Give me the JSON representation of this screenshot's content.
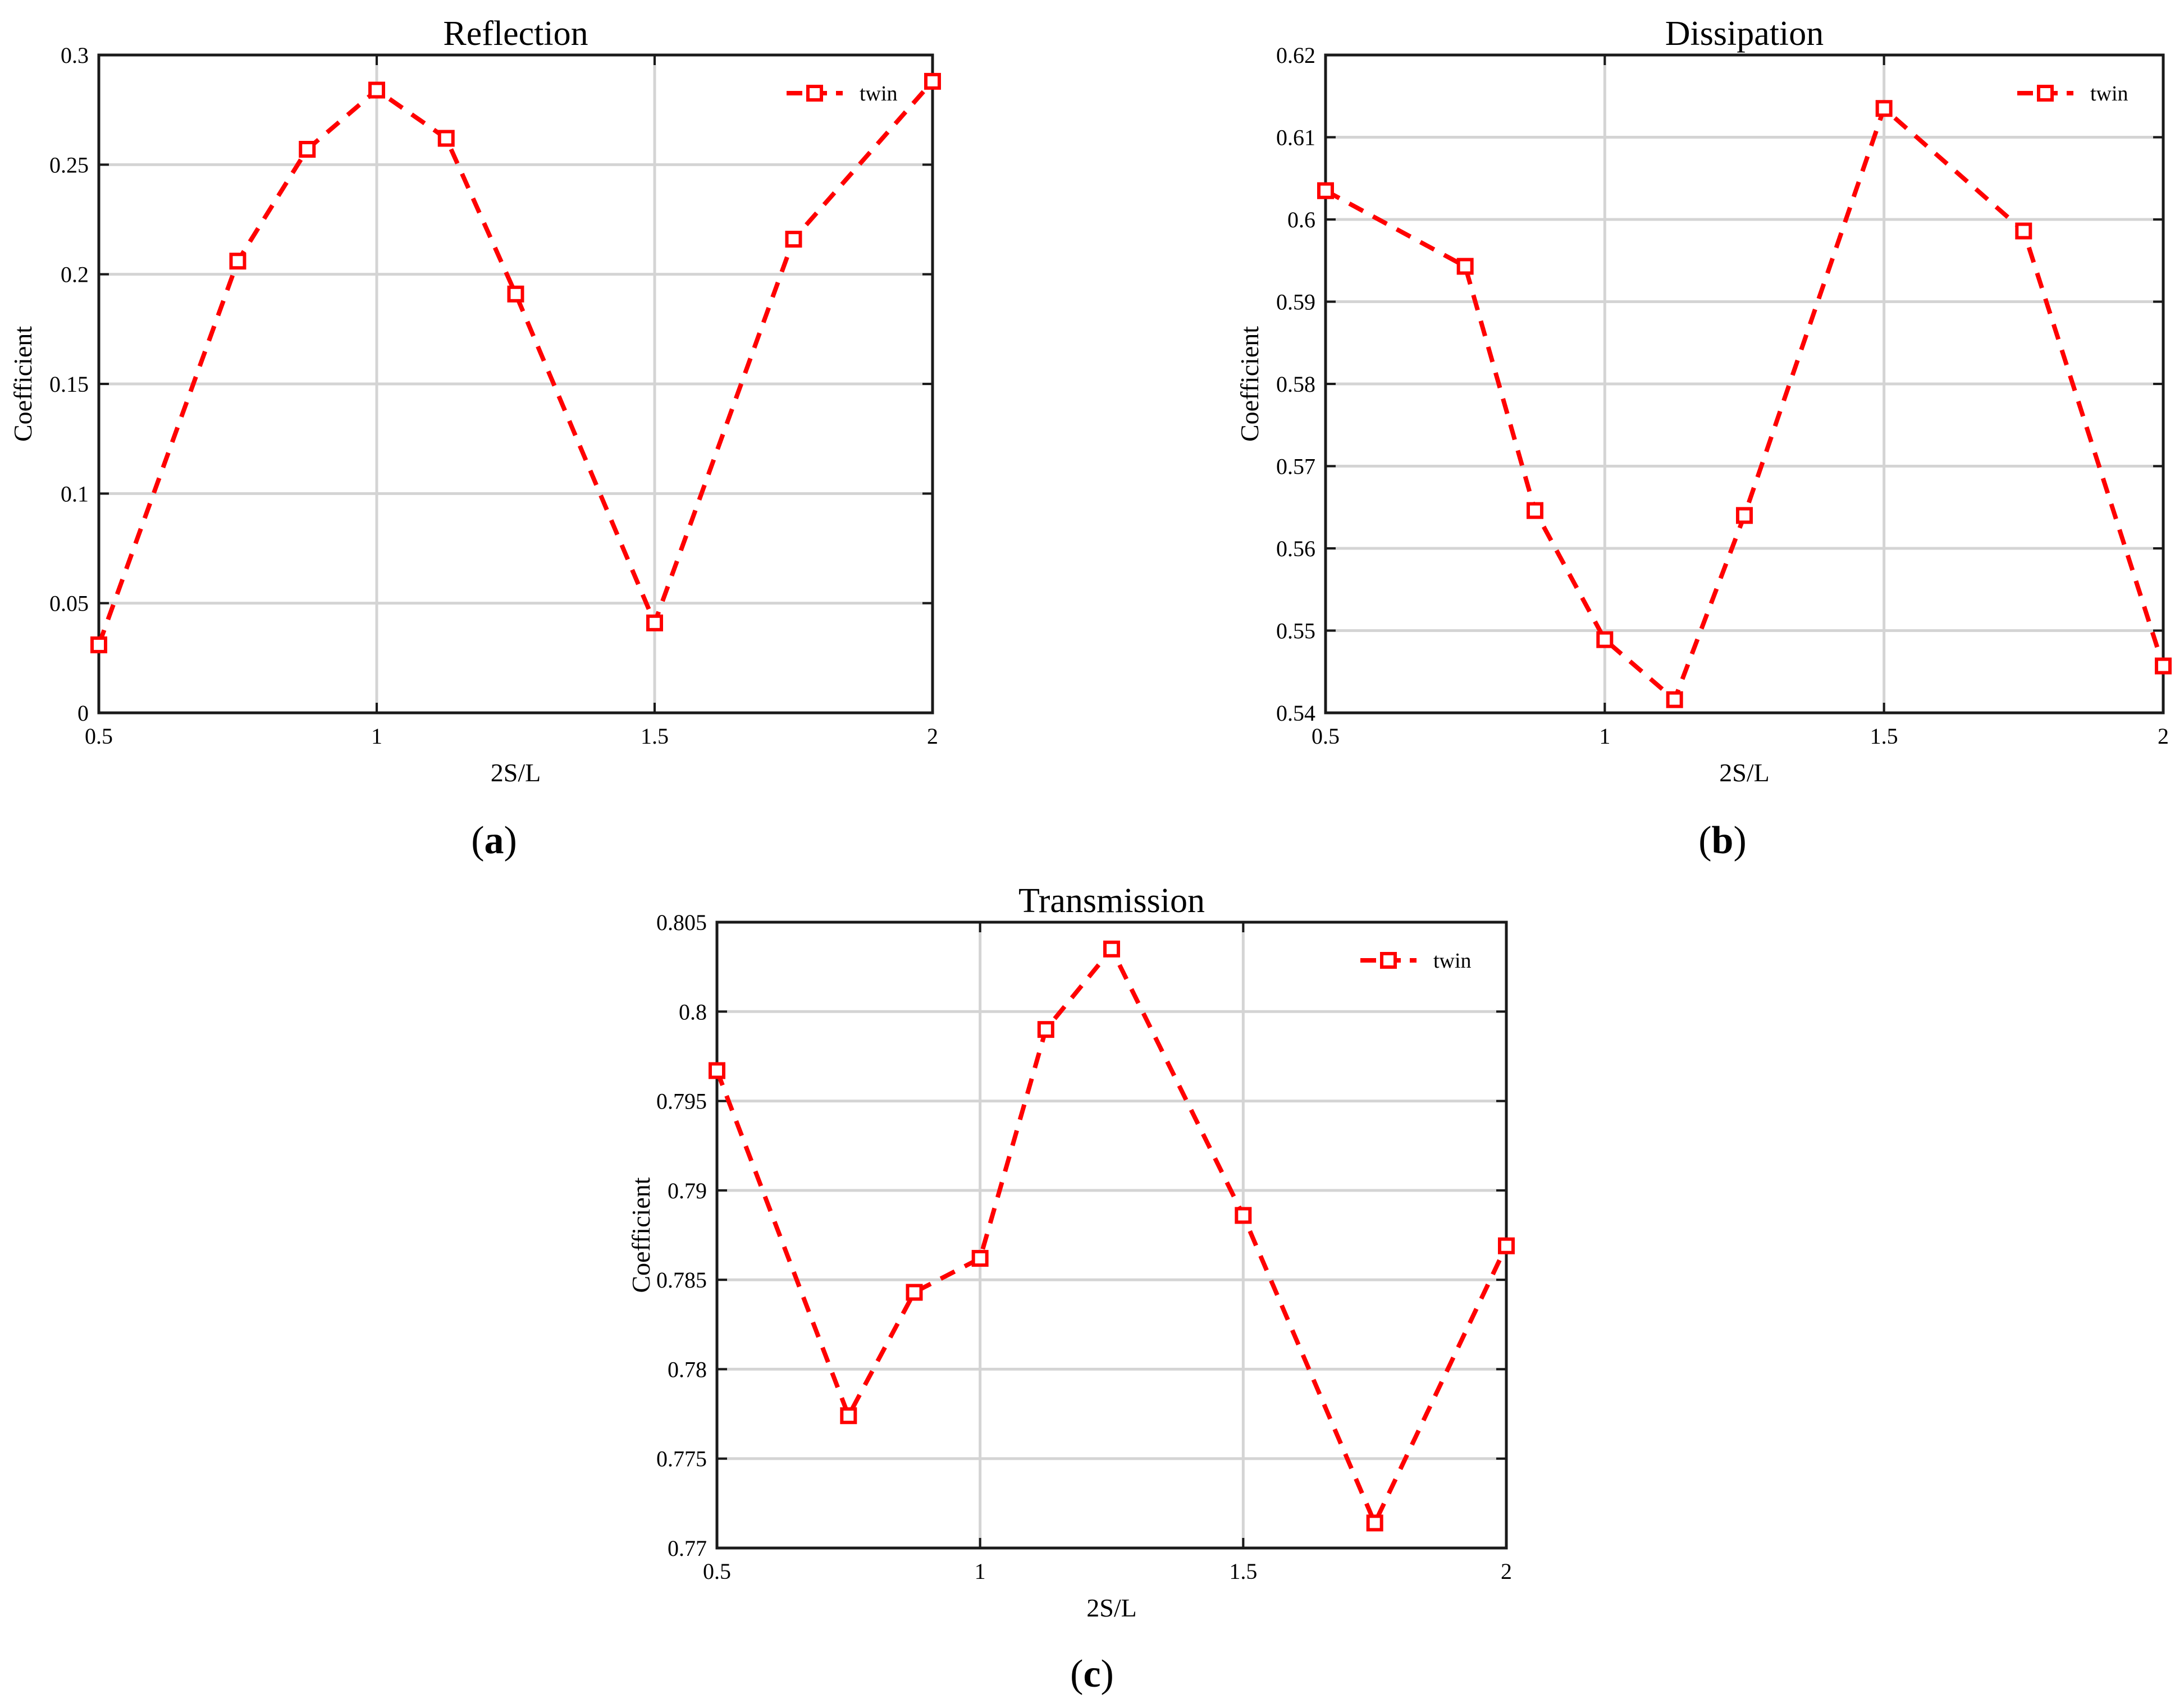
{
  "chart_data": [
    {
      "panel_label": "a",
      "type": "line",
      "title": "Reflection",
      "xlabel": "2S/L",
      "ylabel": "Coefficient",
      "xlim": [
        0.5,
        2
      ],
      "ylim": [
        0,
        0.3
      ],
      "xticks": [
        "0.5",
        "1",
        "1.5",
        "2"
      ],
      "yticks": [
        "0",
        "0.05",
        "0.1",
        "0.15",
        "0.2",
        "0.25",
        "0.3"
      ],
      "grid": true,
      "legend_position": "top-right",
      "series": [
        {
          "name": "twin",
          "color": "#ff0000",
          "x": [
            0.5,
            0.75,
            0.875,
            1.0,
            1.125,
            1.25,
            1.5,
            1.75,
            2.0
          ],
          "y": [
            0.031,
            0.206,
            0.257,
            0.284,
            0.262,
            0.191,
            0.041,
            0.216,
            0.288
          ]
        }
      ]
    },
    {
      "panel_label": "b",
      "type": "line",
      "title": "Dissipation",
      "xlabel": "2S/L",
      "ylabel": "Coefficient",
      "xlim": [
        0.5,
        2
      ],
      "ylim": [
        0.54,
        0.62
      ],
      "xticks": [
        "0.5",
        "1",
        "1.5",
        "2"
      ],
      "yticks": [
        "0.54",
        "0.55",
        "0.56",
        "0.57",
        "0.58",
        "0.59",
        "0.6",
        "0.61",
        "0.62"
      ],
      "grid": true,
      "legend_position": "top-right",
      "series": [
        {
          "name": "twin",
          "color": "#ff0000",
          "x": [
            0.5,
            0.75,
            0.875,
            1.0,
            1.125,
            1.25,
            1.5,
            1.75,
            2.0
          ],
          "y": [
            0.6035,
            0.5943,
            0.5646,
            0.5489,
            0.5416,
            0.564,
            0.6135,
            0.5986,
            0.5457
          ]
        }
      ]
    },
    {
      "panel_label": "c",
      "type": "line",
      "title": "Transmission",
      "xlabel": "2S/L",
      "ylabel": "Coefficient",
      "xlim": [
        0.5,
        2
      ],
      "ylim": [
        0.77,
        0.805
      ],
      "xticks": [
        "0.5",
        "1",
        "1.5",
        "2"
      ],
      "yticks": [
        "0.77",
        "0.775",
        "0.78",
        "0.785",
        "0.79",
        "0.795",
        "0.8",
        "0.805"
      ],
      "grid": true,
      "legend_position": "top-right",
      "series": [
        {
          "name": "twin",
          "color": "#ff0000",
          "x": [
            0.5,
            0.75,
            0.875,
            1.0,
            1.125,
            1.25,
            1.5,
            1.75,
            2.0
          ],
          "y": [
            0.7967,
            0.7774,
            0.7843,
            0.7862,
            0.799,
            0.8035,
            0.7886,
            0.7714,
            0.7869
          ]
        }
      ]
    }
  ]
}
